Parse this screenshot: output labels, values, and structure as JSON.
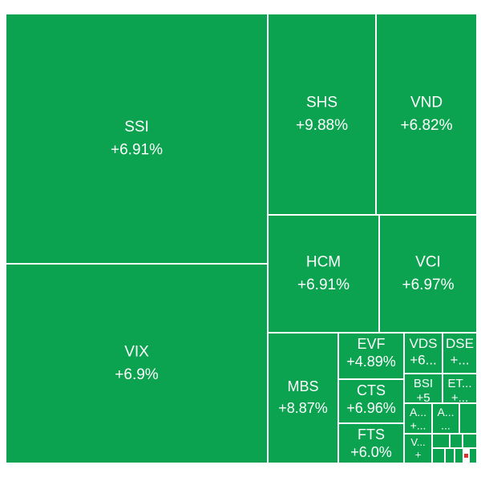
{
  "treemap": {
    "tiles": [
      {
        "name": "SSI",
        "change": "+6.91%"
      },
      {
        "name": "VIX",
        "change": "+6.9%"
      },
      {
        "name": "SHS",
        "change": "+9.88%"
      },
      {
        "name": "VND",
        "change": "+6.82%"
      },
      {
        "name": "HCM",
        "change": "+6.91%"
      },
      {
        "name": "VCI",
        "change": "+6.97%"
      },
      {
        "name": "MBS",
        "change": "+8.87%"
      },
      {
        "name": "EVF",
        "change": "+4.89%"
      },
      {
        "name": "CTS",
        "change": "+6.96%"
      },
      {
        "name": "FTS",
        "change": "+6.0%"
      },
      {
        "name": "VDS",
        "change": "+6..."
      },
      {
        "name": "DSE",
        "change": "+..."
      },
      {
        "name": "BSI",
        "change": "+5"
      },
      {
        "name": "ET...",
        "change": "+..."
      },
      {
        "name": "A...",
        "change": "+..."
      },
      {
        "name": "A...",
        "change": "..."
      },
      {
        "name": "V...",
        "change": "+"
      }
    ]
  }
}
